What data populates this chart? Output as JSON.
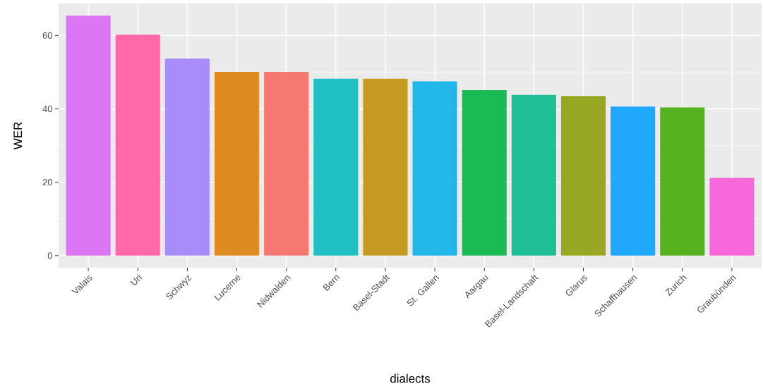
{
  "chart_data": {
    "type": "bar",
    "xlabel": "dialects",
    "ylabel": "WER",
    "categories": [
      "Valais",
      "Uri",
      "Schwyz",
      "Lucerne",
      "Nidwalden",
      "Bern",
      "Basel-Stadt",
      "St. Gallen",
      "Aargau",
      "Basel-Landschaft",
      "Glarus",
      "Schaffhausen",
      "Zurich",
      "Graubünden"
    ],
    "values": [
      65.4,
      60.2,
      53.7,
      50.1,
      50.1,
      48.2,
      48.2,
      47.5,
      45.1,
      43.8,
      43.5,
      40.6,
      40.4,
      21.2
    ],
    "colors": [
      "#DC76F4",
      "#FF68A8",
      "#A78CFA",
      "#E08A24",
      "#F47870",
      "#21BEC4",
      "#C49A22",
      "#22B7E8",
      "#1CBA55",
      "#1EBF96",
      "#99A622",
      "#1FA8FC",
      "#56B21F",
      "#F968D8"
    ],
    "ylim": [
      -3.3,
      68.7
    ],
    "yticks": [
      0,
      20,
      40,
      60
    ],
    "grid": true
  }
}
